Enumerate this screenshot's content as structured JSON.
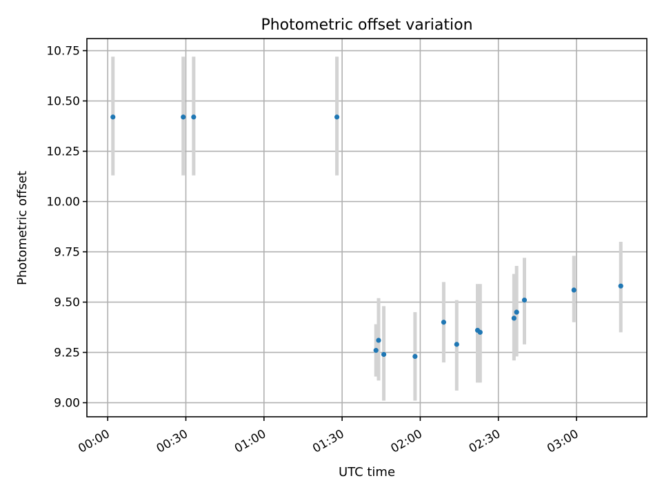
{
  "chart_data": {
    "type": "scatter",
    "title": "Photometric offset variation",
    "xlabel": "UTC time",
    "ylabel": "Photometric offset",
    "xlim": [
      "23:52",
      "03:27"
    ],
    "ylim": [
      8.93,
      10.81
    ],
    "x_ticks": [
      "00:00",
      "00:30",
      "01:00",
      "01:30",
      "02:00",
      "02:30",
      "03:00"
    ],
    "y_ticks": [
      "9.00",
      "9.25",
      "9.50",
      "9.75",
      "10.00",
      "10.25",
      "10.50",
      "10.75"
    ],
    "grid": true,
    "series": [
      {
        "color": "#1f77b4",
        "error_color": "#d3d3d3",
        "points": [
          {
            "x": "00:02",
            "y": 10.42,
            "low": 10.13,
            "high": 10.72
          },
          {
            "x": "00:29",
            "y": 10.42,
            "low": 10.13,
            "high": 10.72
          },
          {
            "x": "00:33",
            "y": 10.42,
            "low": 10.13,
            "high": 10.72
          },
          {
            "x": "01:28",
            "y": 10.42,
            "low": 10.13,
            "high": 10.72
          },
          {
            "x": "01:43",
            "y": 9.26,
            "low": 9.13,
            "high": 9.39
          },
          {
            "x": "01:44",
            "y": 9.31,
            "low": 9.11,
            "high": 9.52
          },
          {
            "x": "01:46",
            "y": 9.24,
            "low": 9.01,
            "high": 9.48
          },
          {
            "x": "01:58",
            "y": 9.23,
            "low": 9.01,
            "high": 9.45
          },
          {
            "x": "02:09",
            "y": 9.4,
            "low": 9.2,
            "high": 9.6
          },
          {
            "x": "02:14",
            "y": 9.29,
            "low": 9.06,
            "high": 9.51
          },
          {
            "x": "02:22",
            "y": 9.36,
            "low": 9.1,
            "high": 9.59
          },
          {
            "x": "02:23",
            "y": 9.35,
            "low": 9.1,
            "high": 9.59
          },
          {
            "x": "02:36",
            "y": 9.42,
            "low": 9.21,
            "high": 9.64
          },
          {
            "x": "02:37",
            "y": 9.45,
            "low": 9.23,
            "high": 9.68
          },
          {
            "x": "02:40",
            "y": 9.51,
            "low": 9.29,
            "high": 9.72
          },
          {
            "x": "02:59",
            "y": 9.56,
            "low": 9.4,
            "high": 9.73
          },
          {
            "x": "03:17",
            "y": 9.58,
            "low": 9.35,
            "high": 9.8
          }
        ]
      }
    ]
  }
}
